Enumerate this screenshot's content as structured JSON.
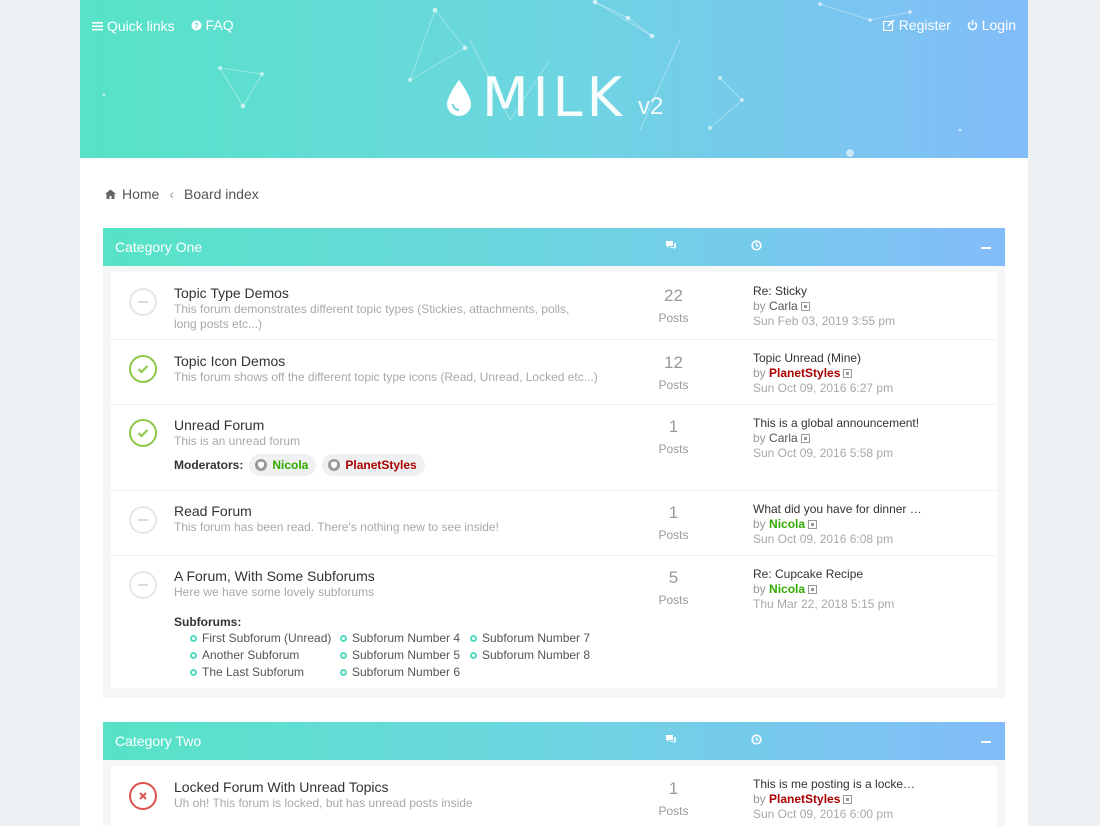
{
  "header": {
    "quick_links": "Quick links",
    "faq": "FAQ",
    "register": "Register",
    "login": "Login",
    "logo_text": "MILK",
    "logo_version": "v2"
  },
  "breadcrumbs": {
    "home": "Home",
    "board_index": "Board index"
  },
  "colors": {
    "gradient_start": "#56e3c6",
    "gradient_end": "#82bcf9",
    "unread": "#8fc74a",
    "locked": "#d9534f",
    "user_red": "#aa0000",
    "user_green": "#33aa00"
  },
  "categories": [
    {
      "title": "Category One",
      "forums": [
        {
          "title": "Topic Type Demos",
          "desc": "This forum demonstrates different topic types (Stickies, attachments, polls, long posts etc...)",
          "posts": "22",
          "posts_label": "Posts",
          "last_title": "Re: Sticky",
          "by": "by",
          "last_user": "Carla",
          "last_date": "Sun Feb 03, 2019 3:55 pm",
          "status": "read"
        },
        {
          "title": "Topic Icon Demos",
          "desc": "This forum shows off the different topic type icons (Read, Unread, Locked etc...)",
          "posts": "12",
          "posts_label": "Posts",
          "last_title": "Topic Unread (Mine)",
          "by": "by",
          "last_user": "PlanetStyles",
          "last_date": "Sun Oct 09, 2016 6:27 pm",
          "status": "unread"
        },
        {
          "title": "Unread Forum",
          "desc": "This is an unread forum",
          "posts": "1",
          "posts_label": "Posts",
          "last_title": "This is a global announcement!",
          "by": "by",
          "last_user": "Carla",
          "last_date": "Sun Oct 09, 2016 5:58 pm",
          "status": "unread",
          "moderators_label": "Moderators:",
          "moderators": [
            "Nicola",
            "PlanetStyles"
          ]
        },
        {
          "title": "Read Forum",
          "desc": "This forum has been read. There's nothing new to see inside!",
          "posts": "1",
          "posts_label": "Posts",
          "last_title": "What did you have for dinner …",
          "by": "by",
          "last_user": "Nicola",
          "last_date": "Sun Oct 09, 2016 6:08 pm",
          "status": "read"
        },
        {
          "title": "A Forum, With Some Subforums",
          "desc": "Here we have some lovely subforums",
          "posts": "5",
          "posts_label": "Posts",
          "last_title": "Re: Cupcake Recipe",
          "by": "by",
          "last_user": "Nicola",
          "last_date": "Thu Mar 22, 2018 5:15 pm",
          "status": "read",
          "subforums_label": "Subforums:",
          "subforums": [
            "First Subforum (Unread)",
            "Subforum Number 4",
            "Subforum Number 7",
            "Another Subforum",
            "Subforum Number 5",
            "Subforum Number 8",
            "The Last Subforum",
            "Subforum Number 6"
          ]
        }
      ]
    },
    {
      "title": "Category Two",
      "forums": [
        {
          "title": "Locked Forum With Unread Topics",
          "desc": "Uh oh! This forum is locked, but has unread posts inside",
          "posts": "1",
          "posts_label": "Posts",
          "last_title": "This is me posting is a locke…",
          "by": "by",
          "last_user": "PlanetStyles",
          "last_date": "Sun Oct 09, 2016 6:00 pm",
          "status": "locked"
        }
      ]
    }
  ]
}
